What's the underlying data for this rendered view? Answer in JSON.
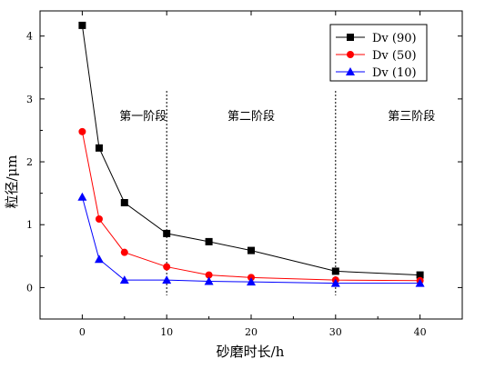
{
  "chart_data": {
    "type": "line",
    "xlabel": "砂磨时长/h",
    "ylabel": "粒径/μm",
    "xlim": [
      -5,
      45
    ],
    "ylim": [
      -0.5,
      4.4
    ],
    "xticks": [
      0,
      10,
      20,
      30,
      40
    ],
    "yticks": [
      0,
      1,
      2,
      3,
      4
    ],
    "grid": false,
    "legend_position": "top-right",
    "series": [
      {
        "name": "Dv (90)",
        "color": "#000000",
        "marker": "square",
        "x": [
          0,
          2,
          5,
          10,
          15,
          20,
          30,
          40
        ],
        "values": [
          4.17,
          2.22,
          1.35,
          0.86,
          0.73,
          0.59,
          0.26,
          0.2
        ]
      },
      {
        "name": "Dv (50)",
        "color": "#ff0000",
        "marker": "circle",
        "x": [
          0,
          2,
          5,
          10,
          15,
          20,
          30,
          40
        ],
        "values": [
          2.48,
          1.09,
          0.56,
          0.33,
          0.2,
          0.16,
          0.12,
          0.11
        ]
      },
      {
        "name": "Dv (10)",
        "color": "#0000ff",
        "marker": "triangle",
        "x": [
          0,
          2,
          5,
          10,
          15,
          20,
          30,
          40
        ],
        "values": [
          1.44,
          0.45,
          0.12,
          0.12,
          0.1,
          0.09,
          0.07,
          0.07
        ]
      }
    ],
    "stage_dividers": [
      10,
      30
    ],
    "stage_labels": [
      "第一阶段",
      "第二阶段",
      "第三阶段"
    ]
  }
}
